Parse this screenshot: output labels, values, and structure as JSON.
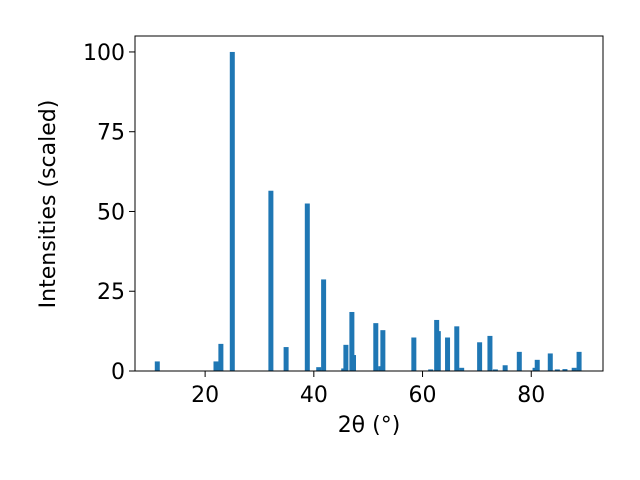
{
  "chart_data": {
    "type": "bar",
    "x_label": "2θ (°)",
    "y_label": "Intensities (scaled)",
    "x": [
      11.2,
      22.0,
      22.9,
      25.0,
      32.1,
      34.9,
      38.8,
      40.9,
      41.8,
      45.5,
      45.9,
      47.0,
      47.3,
      51.4,
      52.3,
      52.7,
      58.4,
      61.5,
      62.6,
      62.9,
      64.6,
      66.3,
      67.2,
      70.5,
      72.4,
      73.4,
      75.2,
      77.8,
      80.7,
      81.1,
      83.5,
      84.8,
      86.2,
      87.9,
      88.8
    ],
    "values": [
      3,
      3,
      8.5,
      100,
      56.5,
      7.5,
      52.5,
      1.2,
      28.7,
      0.8,
      8.2,
      18.5,
      5,
      15,
      1.5,
      12.8,
      10.5,
      0.5,
      16,
      12.5,
      10.5,
      14,
      1,
      9,
      11,
      0.5,
      1.8,
      6,
      1,
      3.5,
      5.5,
      0.5,
      0.6,
      1,
      6
    ],
    "color": "#1f77b4",
    "xlim": [
      7.1,
      93.2
    ],
    "xticks": [
      20,
      40,
      60,
      80
    ],
    "ylim": [
      0,
      105
    ],
    "yticks": [
      0,
      25,
      50,
      75,
      100
    ],
    "grid": false
  }
}
